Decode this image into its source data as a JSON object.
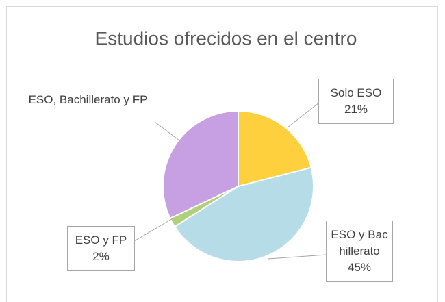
{
  "chart_data": {
    "type": "pie",
    "title": "Estudios ofrecidos en el centro",
    "categories": [
      "Solo ESO",
      "ESO y Bachillerato",
      "ESO y FP",
      "ESO, Bachillerato y FP"
    ],
    "values": [
      21,
      45,
      2,
      32
    ],
    "value_labels": [
      "21%",
      "45%",
      "2%",
      null
    ],
    "colors": [
      "#ffd03d",
      "#b6dce8",
      "#b2d07a",
      "#c6a0e2"
    ]
  }
}
